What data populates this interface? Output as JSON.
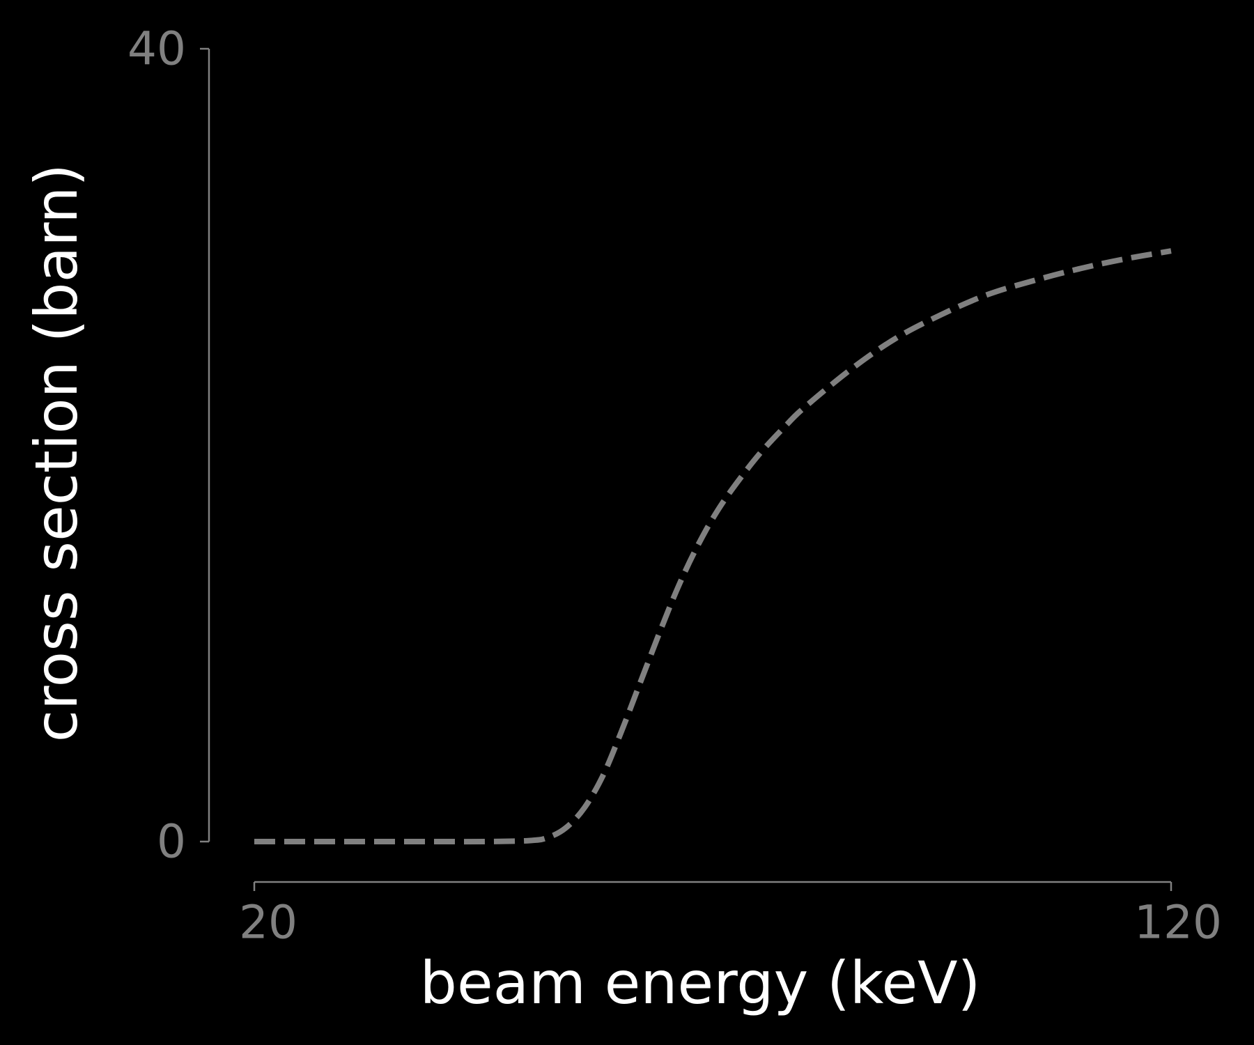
{
  "colors": {
    "background": "#000000",
    "axis": "#808080",
    "tick_text": "#808080",
    "title_text": "#ffffff",
    "series_line": "#808080"
  },
  "chart_data": {
    "type": "line",
    "title": "",
    "xlabel": "beam energy (keV)",
    "ylabel": "cross section (barn)",
    "xlim": [
      20,
      120
    ],
    "ylim": [
      0,
      40
    ],
    "xticks": [
      {
        "value": 20,
        "label": "20"
      },
      {
        "value": 120,
        "label": "120"
      }
    ],
    "yticks": [
      {
        "value": 0,
        "label": "0"
      },
      {
        "value": 40,
        "label": "40"
      }
    ],
    "grid": false,
    "legend": "none",
    "series": [
      {
        "line_style": "dashed",
        "color": "#808080",
        "x": [
          20,
          25,
          30,
          35,
          40,
          45,
          50,
          52,
          54,
          56,
          58,
          60,
          62,
          64,
          66,
          68,
          70,
          72,
          75,
          78,
          80,
          85,
          90,
          95,
          100,
          105,
          110,
          115,
          120
        ],
        "y": [
          0,
          0,
          0,
          0,
          0,
          0,
          0.05,
          0.2,
          0.7,
          1.7,
          3.3,
          5.5,
          7.9,
          10.3,
          12.6,
          14.6,
          16.3,
          17.7,
          19.5,
          21.0,
          21.9,
          23.8,
          25.4,
          26.6,
          27.6,
          28.3,
          28.9,
          29.4,
          29.8
        ]
      }
    ]
  }
}
